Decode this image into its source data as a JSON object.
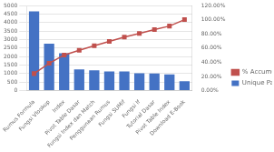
{
  "chart_data": {
    "type": "bar",
    "categories": [
      "Rumus Formula",
      "Fungsi Vlookup",
      "Index",
      "Pivot Table Dasar",
      "Fungsi Index dan Match",
      "Penggunaan Rumus",
      "Fungsi SUMif",
      "Fungsi If",
      "Tutorial Dasar",
      "Pivot Table Index",
      "Download E-Book"
    ],
    "series": [
      {
        "name": "Unique Pageviews",
        "type": "bar",
        "color": "#4472c4",
        "values": [
          4650,
          2750,
          2200,
          1250,
          1200,
          1130,
          1130,
          1020,
          1000,
          950,
          550
        ]
      },
      {
        "name": "% Accumulative",
        "type": "line",
        "axis": "y2",
        "color": "#c0504d",
        "marker": "square",
        "values": [
          24.0,
          38.5,
          50.2,
          56.8,
          63.2,
          69.3,
          75.4,
          80.7,
          86.0,
          91.0,
          100.0
        ]
      }
    ],
    "ylim": [
      0,
      5000
    ],
    "yticks": [
      0,
      500,
      1000,
      1500,
      2000,
      2500,
      3000,
      3500,
      4000,
      4500,
      5000
    ],
    "y2lim": [
      0.0,
      120.0
    ],
    "y2ticks": [
      {
        "value": 0.0,
        "label": "0.00%"
      },
      {
        "value": 20.0,
        "label": "20.00%"
      },
      {
        "value": 40.0,
        "label": "40.00%"
      },
      {
        "value": 60.0,
        "label": "60.00%"
      },
      {
        "value": 80.0,
        "label": "80.00%"
      },
      {
        "value": 100.0,
        "label": "100.00%"
      },
      {
        "value": 120.0,
        "label": "120.00%"
      }
    ],
    "grid": true,
    "legend": "right"
  }
}
